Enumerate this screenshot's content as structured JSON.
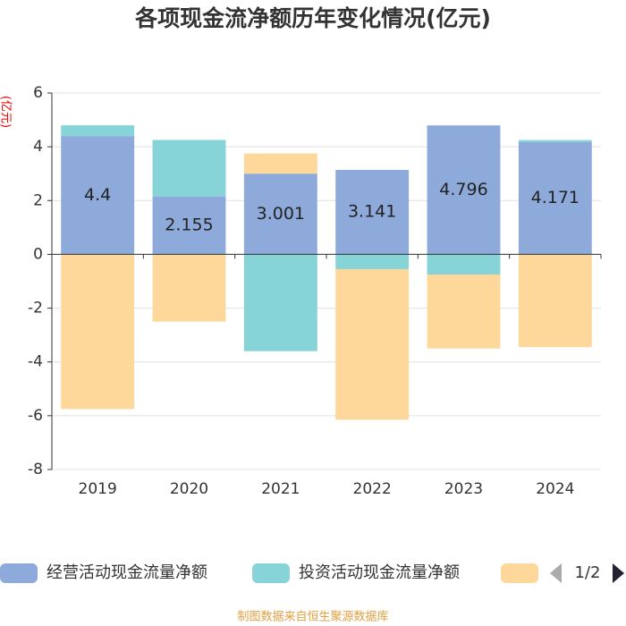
{
  "chart_data": {
    "type": "bar",
    "stacked": true,
    "title": "各项现金流净额历年变化情况(亿元)",
    "y_label": "(亿元)",
    "categories": [
      "2019",
      "2020",
      "2021",
      "2022",
      "2023",
      "2024"
    ],
    "series": [
      {
        "name": "经营活动现金流量净额",
        "color": "#8eaadb",
        "values": [
          4.4,
          2.155,
          3.001,
          3.141,
          4.796,
          4.171
        ],
        "show_labels": true
      },
      {
        "name": "投资活动现金流量净额",
        "color": "#86d4d8",
        "values": [
          0.4,
          2.1,
          -3.6,
          -0.55,
          -0.75,
          0.08
        ]
      },
      {
        "color": "#fed89a",
        "values": [
          -5.75,
          -2.5,
          0.75,
          -5.6,
          -2.75,
          -3.45
        ]
      }
    ],
    "ylim": [
      -8,
      6
    ],
    "yticks": [
      -8,
      -6,
      -4,
      -2,
      0,
      2,
      4,
      6
    ],
    "grid": true,
    "legend_page": "1/2",
    "source": "制图数据来自恒生聚源数据库"
  }
}
